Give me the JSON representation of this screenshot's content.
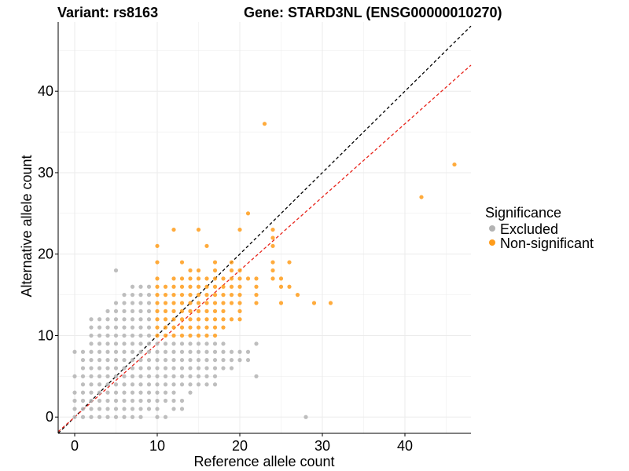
{
  "chart_data": {
    "type": "scatter",
    "title_left": "Variant: rs8163",
    "title_right": "Gene: STARD3NL (ENSG00000010270)",
    "xlabel": "Reference allele count",
    "ylabel": "Alternative allele count",
    "xlim": [
      -2,
      48
    ],
    "ylim": [
      -2,
      48.5
    ],
    "xticks": [
      0,
      10,
      20,
      30,
      40
    ],
    "yticks": [
      0,
      10,
      20,
      30,
      40
    ],
    "grid": true,
    "legend": {
      "title": "Significance",
      "position": "right",
      "entries": [
        {
          "label": "Excluded",
          "color": "#b3b3b3"
        },
        {
          "label": "Non-significant",
          "color": "#ff9c1a"
        }
      ]
    },
    "reference_lines": [
      {
        "name": "identity",
        "slope": 1.0,
        "intercept": 0,
        "color": "#000000",
        "dash": "dashed"
      },
      {
        "name": "fit",
        "slope": 0.9,
        "intercept": 0,
        "color": "#e8261d",
        "dash": "dashed"
      }
    ],
    "series": [
      {
        "name": "Excluded",
        "color": "#b3b3b3",
        "points": [
          [
            0,
            0
          ],
          [
            0,
            1
          ],
          [
            0,
            2
          ],
          [
            0,
            3
          ],
          [
            0,
            5
          ],
          [
            0,
            8
          ],
          [
            1,
            0
          ],
          [
            1,
            1
          ],
          [
            1,
            2
          ],
          [
            1,
            3
          ],
          [
            1,
            4
          ],
          [
            1,
            5
          ],
          [
            1,
            6
          ],
          [
            1,
            7
          ],
          [
            1,
            8
          ],
          [
            2,
            0
          ],
          [
            2,
            1
          ],
          [
            2,
            2
          ],
          [
            2,
            3
          ],
          [
            2,
            4
          ],
          [
            2,
            5
          ],
          [
            2,
            6
          ],
          [
            2,
            7
          ],
          [
            2,
            8
          ],
          [
            2,
            9
          ],
          [
            2,
            10
          ],
          [
            2,
            11
          ],
          [
            2,
            12
          ],
          [
            3,
            0
          ],
          [
            3,
            1
          ],
          [
            3,
            2
          ],
          [
            3,
            3
          ],
          [
            3,
            4
          ],
          [
            3,
            5
          ],
          [
            3,
            6
          ],
          [
            3,
            7
          ],
          [
            3,
            8
          ],
          [
            3,
            9
          ],
          [
            3,
            10
          ],
          [
            3,
            11
          ],
          [
            3,
            12
          ],
          [
            4,
            0
          ],
          [
            4,
            1
          ],
          [
            4,
            2
          ],
          [
            4,
            3
          ],
          [
            4,
            4
          ],
          [
            4,
            5
          ],
          [
            4,
            6
          ],
          [
            4,
            7
          ],
          [
            4,
            8
          ],
          [
            4,
            9
          ],
          [
            4,
            10
          ],
          [
            4,
            11
          ],
          [
            4,
            12
          ],
          [
            4,
            13
          ],
          [
            5,
            0
          ],
          [
            5,
            1
          ],
          [
            5,
            2
          ],
          [
            5,
            3
          ],
          [
            5,
            4
          ],
          [
            5,
            5
          ],
          [
            5,
            6
          ],
          [
            5,
            7
          ],
          [
            5,
            8
          ],
          [
            5,
            9
          ],
          [
            5,
            10
          ],
          [
            5,
            11
          ],
          [
            5,
            12
          ],
          [
            5,
            13
          ],
          [
            5,
            14
          ],
          [
            5,
            18
          ],
          [
            6,
            0
          ],
          [
            6,
            1
          ],
          [
            6,
            2
          ],
          [
            6,
            3
          ],
          [
            6,
            4
          ],
          [
            6,
            5
          ],
          [
            6,
            6
          ],
          [
            6,
            7
          ],
          [
            6,
            8
          ],
          [
            6,
            9
          ],
          [
            6,
            10
          ],
          [
            6,
            11
          ],
          [
            6,
            12
          ],
          [
            6,
            13
          ],
          [
            6,
            14
          ],
          [
            6,
            15
          ],
          [
            7,
            0
          ],
          [
            7,
            1
          ],
          [
            7,
            2
          ],
          [
            7,
            3
          ],
          [
            7,
            4
          ],
          [
            7,
            5
          ],
          [
            7,
            6
          ],
          [
            7,
            7
          ],
          [
            7,
            8
          ],
          [
            7,
            9
          ],
          [
            7,
            10
          ],
          [
            7,
            11
          ],
          [
            7,
            12
          ],
          [
            7,
            13
          ],
          [
            7,
            14
          ],
          [
            7,
            15
          ],
          [
            7,
            16
          ],
          [
            8,
            0
          ],
          [
            8,
            1
          ],
          [
            8,
            2
          ],
          [
            8,
            3
          ],
          [
            8,
            4
          ],
          [
            8,
            5
          ],
          [
            8,
            6
          ],
          [
            8,
            7
          ],
          [
            8,
            8
          ],
          [
            8,
            9
          ],
          [
            8,
            10
          ],
          [
            8,
            11
          ],
          [
            8,
            12
          ],
          [
            8,
            13
          ],
          [
            8,
            14
          ],
          [
            8,
            15
          ],
          [
            8,
            16
          ],
          [
            9,
            1
          ],
          [
            9,
            2
          ],
          [
            9,
            3
          ],
          [
            9,
            4
          ],
          [
            9,
            5
          ],
          [
            9,
            6
          ],
          [
            9,
            7
          ],
          [
            9,
            8
          ],
          [
            9,
            9
          ],
          [
            9,
            10
          ],
          [
            9,
            11
          ],
          [
            9,
            12
          ],
          [
            9,
            13
          ],
          [
            9,
            14
          ],
          [
            9,
            15
          ],
          [
            9,
            16
          ],
          [
            10,
            0
          ],
          [
            10,
            1
          ],
          [
            10,
            2
          ],
          [
            10,
            3
          ],
          [
            10,
            4
          ],
          [
            10,
            5
          ],
          [
            10,
            6
          ],
          [
            10,
            7
          ],
          [
            10,
            8
          ],
          [
            10,
            9
          ],
          [
            11,
            0
          ],
          [
            11,
            2
          ],
          [
            11,
            3
          ],
          [
            11,
            4
          ],
          [
            11,
            5
          ],
          [
            11,
            6
          ],
          [
            11,
            7
          ],
          [
            11,
            8
          ],
          [
            11,
            9
          ],
          [
            12,
            1
          ],
          [
            12,
            2
          ],
          [
            12,
            3
          ],
          [
            12,
            4
          ],
          [
            12,
            5
          ],
          [
            12,
            6
          ],
          [
            12,
            7
          ],
          [
            12,
            8
          ],
          [
            12,
            9
          ],
          [
            13,
            1
          ],
          [
            13,
            2
          ],
          [
            13,
            4
          ],
          [
            13,
            5
          ],
          [
            13,
            6
          ],
          [
            13,
            7
          ],
          [
            13,
            8
          ],
          [
            13,
            9
          ],
          [
            14,
            3
          ],
          [
            14,
            4
          ],
          [
            14,
            5
          ],
          [
            14,
            6
          ],
          [
            14,
            7
          ],
          [
            14,
            8
          ],
          [
            14,
            9
          ],
          [
            15,
            4
          ],
          [
            15,
            5
          ],
          [
            15,
            6
          ],
          [
            15,
            7
          ],
          [
            15,
            8
          ],
          [
            15,
            9
          ],
          [
            16,
            4
          ],
          [
            16,
            5
          ],
          [
            16,
            6
          ],
          [
            16,
            7
          ],
          [
            16,
            8
          ],
          [
            16,
            9
          ],
          [
            17,
            4
          ],
          [
            17,
            5
          ],
          [
            17,
            6
          ],
          [
            17,
            7
          ],
          [
            17,
            8
          ],
          [
            17,
            9
          ],
          [
            18,
            6
          ],
          [
            18,
            7
          ],
          [
            18,
            8
          ],
          [
            18,
            9
          ],
          [
            19,
            6
          ],
          [
            19,
            7
          ],
          [
            19,
            8
          ],
          [
            20,
            7
          ],
          [
            20,
            8
          ],
          [
            21,
            7
          ],
          [
            21,
            8
          ],
          [
            22,
            5
          ],
          [
            22,
            9
          ],
          [
            28,
            0
          ]
        ]
      },
      {
        "name": "Non-significant",
        "color": "#ff9c1a",
        "points": [
          [
            10,
            10
          ],
          [
            10,
            11
          ],
          [
            10,
            12
          ],
          [
            10,
            13
          ],
          [
            10,
            14
          ],
          [
            10,
            15
          ],
          [
            10,
            16
          ],
          [
            10,
            17
          ],
          [
            10,
            19
          ],
          [
            10,
            21
          ],
          [
            11,
            10
          ],
          [
            11,
            11
          ],
          [
            11,
            12
          ],
          [
            11,
            13
          ],
          [
            11,
            14
          ],
          [
            11,
            15
          ],
          [
            11,
            16
          ],
          [
            12,
            10
          ],
          [
            12,
            11
          ],
          [
            12,
            12
          ],
          [
            12,
            13
          ],
          [
            12,
            14
          ],
          [
            12,
            15
          ],
          [
            12,
            16
          ],
          [
            12,
            17
          ],
          [
            12,
            23
          ],
          [
            13,
            10
          ],
          [
            13,
            11
          ],
          [
            13,
            12
          ],
          [
            13,
            13
          ],
          [
            13,
            14
          ],
          [
            13,
            15
          ],
          [
            13,
            16
          ],
          [
            13,
            17
          ],
          [
            13,
            19
          ],
          [
            14,
            10
          ],
          [
            14,
            11
          ],
          [
            14,
            12
          ],
          [
            14,
            13
          ],
          [
            14,
            14
          ],
          [
            14,
            15
          ],
          [
            14,
            16
          ],
          [
            14,
            17
          ],
          [
            14,
            18
          ],
          [
            15,
            10
          ],
          [
            15,
            11
          ],
          [
            15,
            12
          ],
          [
            15,
            13
          ],
          [
            15,
            14
          ],
          [
            15,
            15
          ],
          [
            15,
            16
          ],
          [
            15,
            17
          ],
          [
            15,
            18
          ],
          [
            15,
            23
          ],
          [
            16,
            10
          ],
          [
            16,
            11
          ],
          [
            16,
            12
          ],
          [
            16,
            13
          ],
          [
            16,
            14
          ],
          [
            16,
            15
          ],
          [
            16,
            16
          ],
          [
            16,
            17
          ],
          [
            16,
            21
          ],
          [
            17,
            10
          ],
          [
            17,
            11
          ],
          [
            17,
            12
          ],
          [
            17,
            13
          ],
          [
            17,
            14
          ],
          [
            17,
            15
          ],
          [
            17,
            16
          ],
          [
            17,
            17
          ],
          [
            17,
            18
          ],
          [
            17,
            19
          ],
          [
            18,
            11
          ],
          [
            18,
            12
          ],
          [
            18,
            13
          ],
          [
            18,
            14
          ],
          [
            18,
            15
          ],
          [
            18,
            16
          ],
          [
            18,
            17
          ],
          [
            19,
            12
          ],
          [
            19,
            14
          ],
          [
            19,
            15
          ],
          [
            19,
            16
          ],
          [
            19,
            17
          ],
          [
            19,
            18
          ],
          [
            19,
            19
          ],
          [
            20,
            12
          ],
          [
            20,
            13
          ],
          [
            20,
            14
          ],
          [
            20,
            15
          ],
          [
            20,
            16
          ],
          [
            20,
            17
          ],
          [
            20,
            18
          ],
          [
            20,
            23
          ],
          [
            21,
            17
          ],
          [
            21,
            25
          ],
          [
            22,
            14
          ],
          [
            22,
            15
          ],
          [
            22,
            16
          ],
          [
            22,
            17
          ],
          [
            23,
            36
          ],
          [
            24,
            17
          ],
          [
            24,
            18
          ],
          [
            24,
            19
          ],
          [
            24,
            21
          ],
          [
            24,
            22
          ],
          [
            24,
            23
          ],
          [
            25,
            14
          ],
          [
            25,
            16
          ],
          [
            25,
            17
          ],
          [
            26,
            16
          ],
          [
            26,
            19
          ],
          [
            27,
            15
          ],
          [
            29,
            14
          ],
          [
            31,
            14
          ],
          [
            42,
            27
          ],
          [
            46,
            31
          ]
        ]
      }
    ]
  }
}
